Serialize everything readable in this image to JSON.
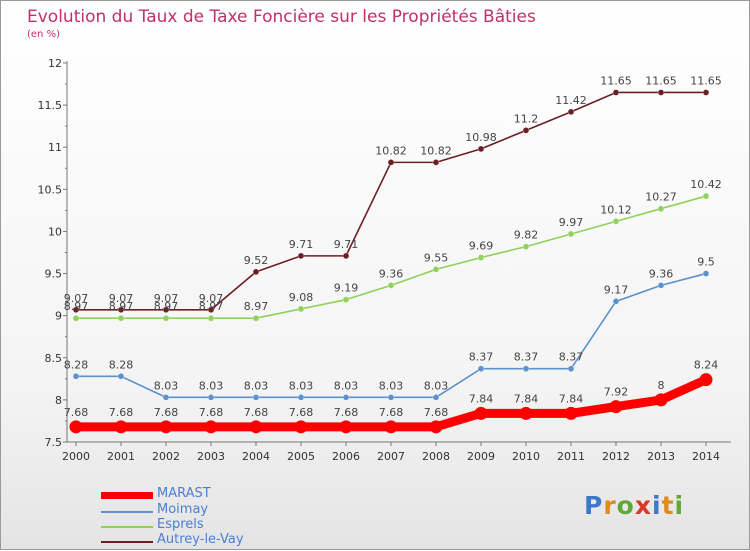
{
  "title": "Evolution du Taux de Taxe Foncière sur les Propriétés Bâties",
  "unit": "(en %)",
  "logo": {
    "text": "Proxiti",
    "letter_colors": [
      "#3c7ac8",
      "#e08a22",
      "#62a838",
      "#d83a2a",
      "#3c7ac8",
      "#e08a22",
      "#62a838"
    ]
  },
  "chart_data": {
    "type": "line",
    "x": [
      2000,
      2001,
      2002,
      2003,
      2004,
      2005,
      2006,
      2007,
      2008,
      2009,
      2010,
      2011,
      2012,
      2013,
      2014
    ],
    "ylim": [
      7.5,
      12
    ],
    "yticks": [
      "7.5",
      "8",
      "8.5",
      "9",
      "9.5",
      "10",
      "10.5",
      "11",
      "11.5",
      "12"
    ],
    "grid": false,
    "legend_position": "bottom-left",
    "series": [
      {
        "name": "Autrey-le-Vay",
        "color": "#6b1f24",
        "values": [
          9.07,
          9.07,
          9.07,
          9.07,
          9.52,
          9.71,
          9.71,
          10.82,
          10.82,
          10.98,
          11.2,
          11.42,
          11.65,
          11.65,
          11.65
        ],
        "labels": [
          "9.07",
          "9.07",
          "9.07",
          "9.07",
          "9.52",
          "9.71",
          "9.71",
          "10.82",
          "10.82",
          "10.98",
          "11.2",
          "11.42",
          "11.65",
          "11.65",
          "11.65"
        ]
      },
      {
        "name": "Esprels",
        "color": "#8fd15a",
        "values": [
          8.97,
          8.97,
          8.97,
          8.97,
          8.97,
          9.08,
          9.19,
          9.36,
          9.55,
          9.69,
          9.82,
          9.97,
          10.12,
          10.27,
          10.42
        ],
        "labels": [
          "8.97",
          "8.97",
          "8.97",
          "8.97",
          "8.97",
          "9.08",
          "9.19",
          "9.36",
          "9.55",
          "9.69",
          "9.82",
          "9.97",
          "10.12",
          "10.27",
          "10.42"
        ]
      },
      {
        "name": "Moimay",
        "color": "#5b91cc",
        "values": [
          8.28,
          8.28,
          8.03,
          8.03,
          8.03,
          8.03,
          8.03,
          8.03,
          8.03,
          8.37,
          8.37,
          8.37,
          9.17,
          9.36,
          9.5
        ],
        "labels": [
          "8.28",
          "8.28",
          "8.03",
          "8.03",
          "8.03",
          "8.03",
          "8.03",
          "8.03",
          "8.03",
          "8.37",
          "8.37",
          "8.37",
          "9.17",
          "9.36",
          "9.5"
        ]
      },
      {
        "name": "MARAST",
        "color": "#ff0000",
        "values": [
          7.68,
          7.68,
          7.68,
          7.68,
          7.68,
          7.68,
          7.68,
          7.68,
          7.68,
          7.84,
          7.84,
          7.84,
          7.92,
          8,
          8.24
        ],
        "labels": [
          "7.68",
          "7.68",
          "7.68",
          "7.68",
          "7.68",
          "7.68",
          "7.68",
          "7.68",
          "7.68",
          "7.84",
          "7.84",
          "7.84",
          "7.92",
          "8",
          "8.24"
        ]
      }
    ],
    "legend": [
      {
        "name": "MARAST",
        "color": "#ff0000"
      },
      {
        "name": "Moimay",
        "color": "#5b91cc"
      },
      {
        "name": "Esprels",
        "color": "#8fd15a"
      },
      {
        "name": "Autrey-le-Vay",
        "color": "#6b1f24"
      }
    ]
  }
}
